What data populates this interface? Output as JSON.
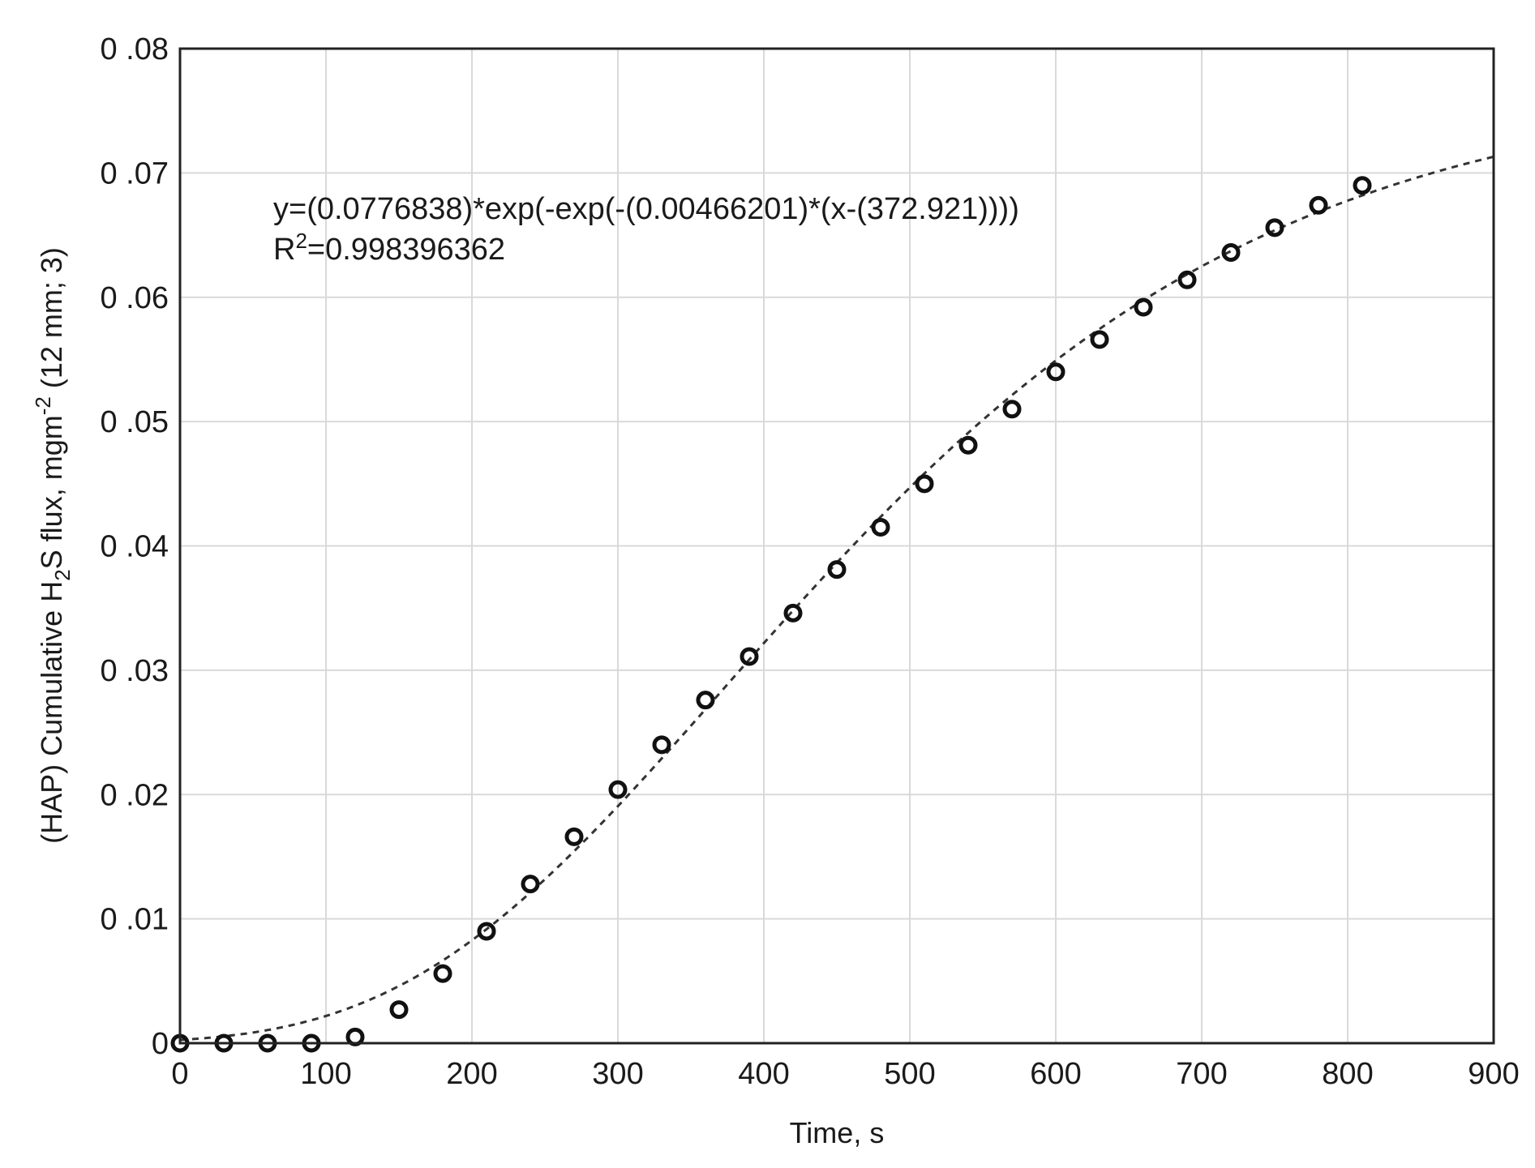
{
  "chart_data": {
    "type": "scatter",
    "xlabel": "Time, s",
    "ylabel": {
      "prefix": "(HAP) Cumulative H",
      "sub": "2",
      "middle": "S flux, mgm",
      "sup": "-2",
      "suffix": " (12 mm; 3)"
    },
    "xlim": [
      0,
      900
    ],
    "ylim": [
      0,
      0.08
    ],
    "grid": true,
    "x_ticks": [
      "0",
      "100",
      "200",
      "300",
      "400",
      "500",
      "600",
      "700",
      "800",
      "900"
    ],
    "y_ticks": [
      "0",
      "0 .01",
      "0 .02",
      "0 .03",
      "0 .04",
      "0 .05",
      "0 .06",
      "0 .07",
      "0 .08"
    ],
    "annotation": {
      "equation": "y=(0.0776838)*exp(-exp(-(0.00466201)*(x-(372.921))))",
      "r2_base": "R",
      "r2_sup": "2",
      "r2_value": "=0.998396362"
    },
    "fit": {
      "a": 0.0776838,
      "k": 0.00466201,
      "c": 372.921,
      "style": "dashed"
    },
    "series": [
      {
        "marker": "open-circle",
        "x": [
          0,
          30,
          60,
          90,
          120,
          150,
          180,
          210,
          240,
          270,
          300,
          330,
          360,
          390,
          420,
          450,
          480,
          510,
          540,
          570,
          600,
          630,
          660,
          690,
          720,
          750,
          780,
          810
        ],
        "y": [
          0,
          0,
          0,
          0,
          0.0005,
          0.0027,
          0.0056,
          0.009,
          0.0128,
          0.0166,
          0.0204,
          0.024,
          0.0276,
          0.0311,
          0.0346,
          0.0381,
          0.0415,
          0.045,
          0.0481,
          0.051,
          0.054,
          0.0566,
          0.0592,
          0.0614,
          0.0636,
          0.0656,
          0.0674,
          0.069
        ]
      }
    ]
  }
}
